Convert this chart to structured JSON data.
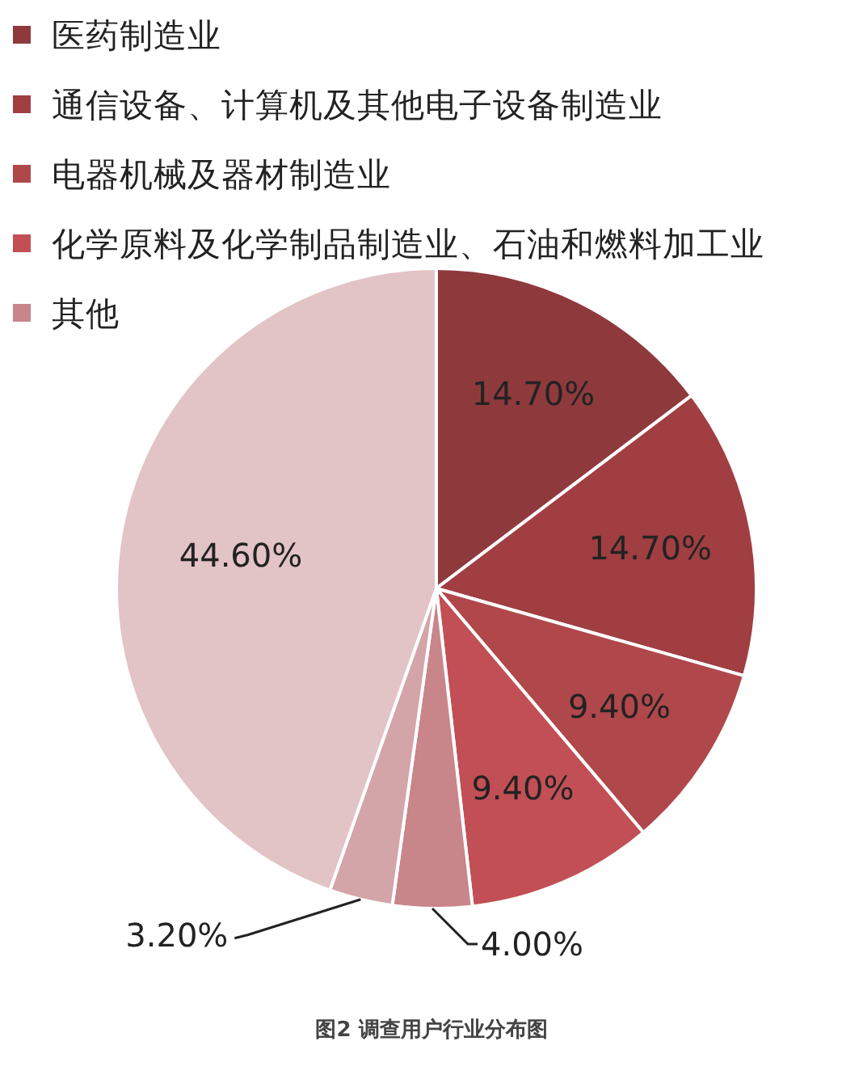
{
  "chart_data": {
    "type": "pie",
    "title": "图2 调查用户行业分布图",
    "categories": [
      "医药制造业",
      "通信设备、计算机及其他电子设备制造业",
      "电器机械及器材制造业",
      "化学原料及化学制品制造业、石油和燃料加工业",
      "其他",
      null,
      null
    ],
    "values": [
      14.7,
      14.7,
      9.4,
      9.4,
      4.0,
      3.2,
      44.6
    ],
    "value_labels": [
      "14.70%",
      "14.70%",
      "9.40%",
      "9.40%",
      "4.00%",
      "3.20%",
      "44.60%"
    ],
    "colors": [
      "#8e3a3d",
      "#a03e42",
      "#b0474b",
      "#c24f55",
      "#c8858a",
      "#d3a4a8",
      "#e2c3c6"
    ],
    "legend": "top left"
  }
}
